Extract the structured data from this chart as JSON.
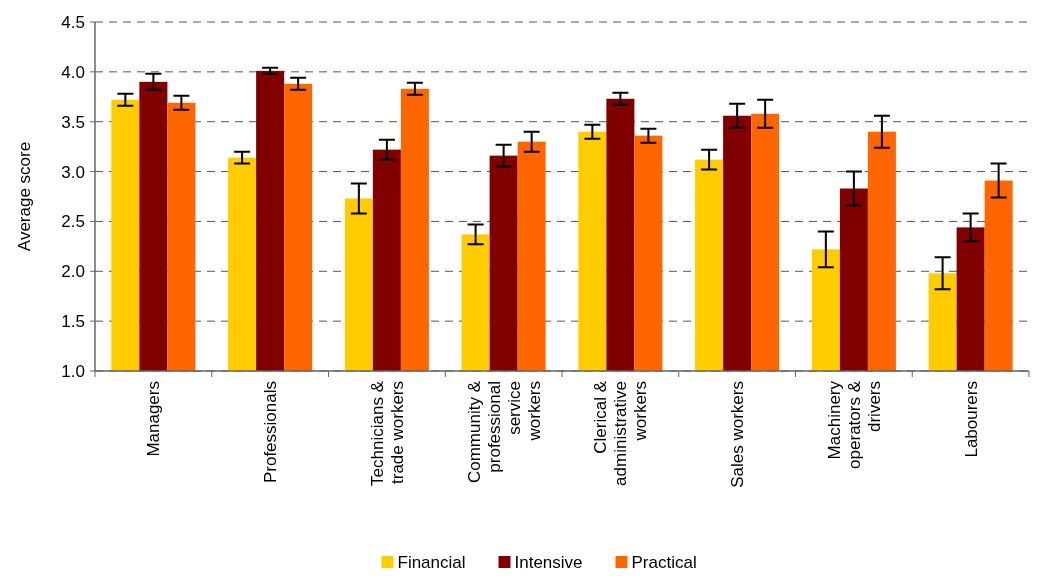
{
  "chart_data": {
    "type": "bar",
    "ylabel": "Average score",
    "categories": [
      "Managers",
      "Professionals",
      "Technicians & trade workers",
      "Community & professional service workers",
      "Clerical & administrative workers",
      "Sales workers",
      "Machinery operators & drivers",
      "Labourers"
    ],
    "series": [
      {
        "name": "Financial",
        "color": "#ffcc00",
        "values": [
          3.72,
          3.14,
          2.73,
          2.37,
          3.4,
          3.12,
          2.22,
          1.98
        ],
        "errors": [
          0.06,
          0.06,
          0.15,
          0.1,
          0.07,
          0.1,
          0.18,
          0.16
        ]
      },
      {
        "name": "Intensive",
        "color": "#800000",
        "values": [
          3.9,
          4.01,
          3.22,
          3.16,
          3.73,
          3.56,
          2.83,
          2.44
        ],
        "errors": [
          0.08,
          0.03,
          0.1,
          0.11,
          0.06,
          0.12,
          0.17,
          0.14
        ]
      },
      {
        "name": "Practical",
        "color": "#ff6600",
        "values": [
          3.69,
          3.88,
          3.83,
          3.3,
          3.36,
          3.58,
          3.4,
          2.91
        ],
        "errors": [
          0.07,
          0.06,
          0.06,
          0.1,
          0.07,
          0.14,
          0.16,
          0.17
        ]
      }
    ],
    "ylim": [
      1.0,
      4.5
    ],
    "yticks": [
      {
        "value": 1,
        "label": "1.0"
      },
      1.5,
      {
        "value": 2,
        "label": "2.0"
      },
      2.5,
      {
        "value": 3,
        "label": "3.0"
      },
      3.5,
      {
        "value": 4,
        "label": "4.0"
      },
      4.5
    ],
    "grid": "y",
    "legend": "bottom"
  }
}
